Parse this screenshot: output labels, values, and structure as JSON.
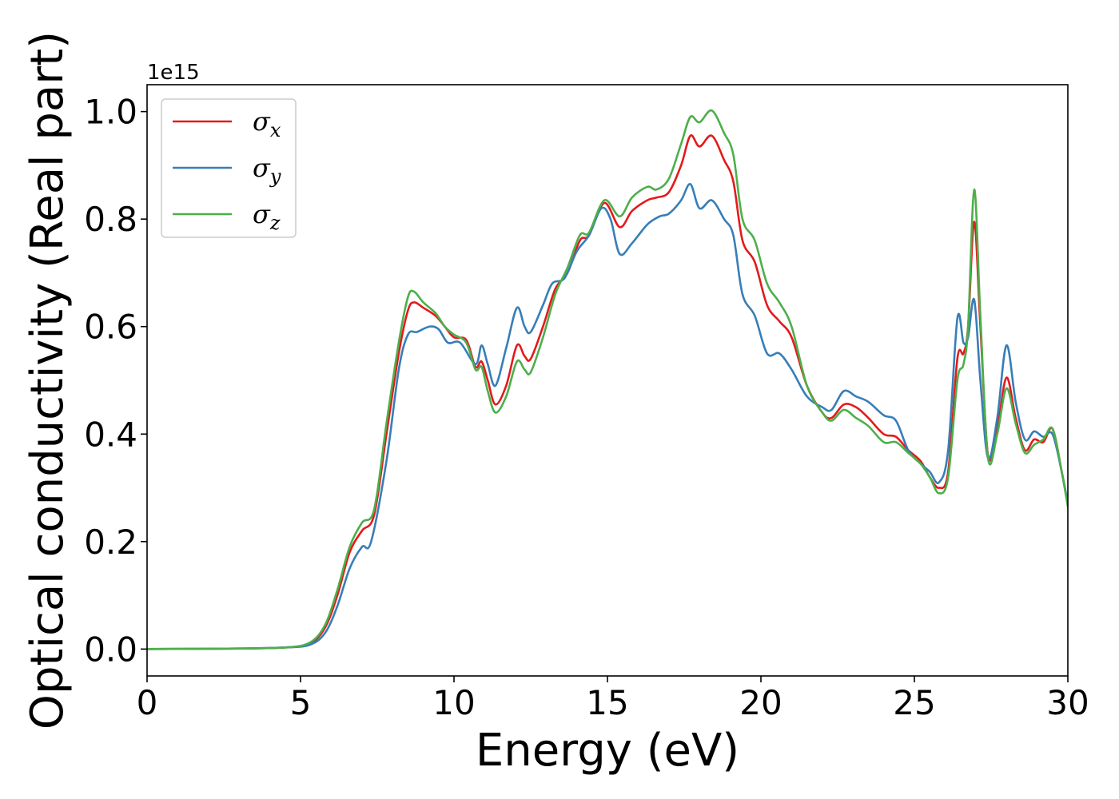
{
  "chart_data": {
    "type": "line",
    "xlabel": "Energy (eV)",
    "ylabel": "Optical conductivity (Real part)",
    "y_offset_text": "1e15",
    "xlim": [
      0,
      30
    ],
    "ylim": [
      -0.05,
      1.05
    ],
    "xticks": [
      0,
      5,
      10,
      15,
      20,
      25,
      30
    ],
    "yticks": [
      0.0,
      0.2,
      0.4,
      0.6,
      0.8,
      1.0
    ],
    "xtick_labels": [
      "0",
      "5",
      "10",
      "15",
      "20",
      "25",
      "30"
    ],
    "ytick_labels": [
      "0.0",
      "0.2",
      "0.4",
      "0.6",
      "0.8",
      "1.0"
    ],
    "legend_position": "top-left",
    "grid": false,
    "series": [
      {
        "name": "σx",
        "name_base": "σ",
        "name_sub": "x",
        "color": "#e41a1c",
        "points": [
          [
            0,
            0
          ],
          [
            3,
            0.001
          ],
          [
            4.5,
            0.003
          ],
          [
            5.3,
            0.01
          ],
          [
            5.8,
            0.04
          ],
          [
            6.2,
            0.1
          ],
          [
            6.6,
            0.18
          ],
          [
            7.0,
            0.22
          ],
          [
            7.4,
            0.25
          ],
          [
            7.8,
            0.4
          ],
          [
            8.2,
            0.55
          ],
          [
            8.5,
            0.63
          ],
          [
            8.7,
            0.645
          ],
          [
            9.0,
            0.635
          ],
          [
            9.4,
            0.62
          ],
          [
            9.7,
            0.6
          ],
          [
            10.0,
            0.58
          ],
          [
            10.4,
            0.575
          ],
          [
            10.7,
            0.525
          ],
          [
            10.9,
            0.535
          ],
          [
            11.1,
            0.5
          ],
          [
            11.35,
            0.455
          ],
          [
            11.7,
            0.49
          ],
          [
            12.05,
            0.565
          ],
          [
            12.3,
            0.545
          ],
          [
            12.5,
            0.54
          ],
          [
            12.9,
            0.6
          ],
          [
            13.3,
            0.67
          ],
          [
            13.7,
            0.7
          ],
          [
            14.1,
            0.76
          ],
          [
            14.4,
            0.77
          ],
          [
            14.9,
            0.83
          ],
          [
            15.4,
            0.785
          ],
          [
            15.8,
            0.815
          ],
          [
            16.3,
            0.835
          ],
          [
            16.6,
            0.84
          ],
          [
            17.0,
            0.85
          ],
          [
            17.4,
            0.9
          ],
          [
            17.7,
            0.955
          ],
          [
            18.0,
            0.935
          ],
          [
            18.4,
            0.955
          ],
          [
            18.8,
            0.91
          ],
          [
            19.1,
            0.87
          ],
          [
            19.4,
            0.76
          ],
          [
            19.8,
            0.72
          ],
          [
            20.2,
            0.64
          ],
          [
            20.6,
            0.61
          ],
          [
            21.0,
            0.58
          ],
          [
            21.5,
            0.49
          ],
          [
            22.0,
            0.44
          ],
          [
            22.3,
            0.43
          ],
          [
            22.7,
            0.455
          ],
          [
            23.1,
            0.45
          ],
          [
            23.5,
            0.43
          ],
          [
            24.0,
            0.4
          ],
          [
            24.4,
            0.395
          ],
          [
            24.8,
            0.37
          ],
          [
            25.2,
            0.35
          ],
          [
            25.5,
            0.32
          ],
          [
            25.8,
            0.3
          ],
          [
            26.1,
            0.33
          ],
          [
            26.4,
            0.54
          ],
          [
            26.6,
            0.55
          ],
          [
            26.75,
            0.6
          ],
          [
            26.95,
            0.795
          ],
          [
            27.15,
            0.6
          ],
          [
            27.4,
            0.36
          ],
          [
            27.7,
            0.41
          ],
          [
            28.0,
            0.505
          ],
          [
            28.3,
            0.43
          ],
          [
            28.6,
            0.37
          ],
          [
            28.9,
            0.39
          ],
          [
            29.2,
            0.385
          ],
          [
            29.5,
            0.41
          ],
          [
            29.8,
            0.33
          ],
          [
            30,
            0.27
          ]
        ]
      },
      {
        "name": "σy",
        "name_base": "σ",
        "name_sub": "y",
        "color": "#377eb8",
        "points": [
          [
            0,
            0
          ],
          [
            3,
            0.001
          ],
          [
            4.5,
            0.003
          ],
          [
            5.3,
            0.008
          ],
          [
            5.8,
            0.03
          ],
          [
            6.2,
            0.08
          ],
          [
            6.6,
            0.15
          ],
          [
            7.0,
            0.19
          ],
          [
            7.3,
            0.2
          ],
          [
            7.8,
            0.35
          ],
          [
            8.2,
            0.52
          ],
          [
            8.5,
            0.585
          ],
          [
            8.8,
            0.59
          ],
          [
            9.2,
            0.6
          ],
          [
            9.5,
            0.595
          ],
          [
            9.8,
            0.57
          ],
          [
            10.2,
            0.57
          ],
          [
            10.7,
            0.53
          ],
          [
            10.9,
            0.565
          ],
          [
            11.1,
            0.53
          ],
          [
            11.35,
            0.49
          ],
          [
            11.7,
            0.56
          ],
          [
            12.05,
            0.635
          ],
          [
            12.3,
            0.6
          ],
          [
            12.5,
            0.59
          ],
          [
            12.9,
            0.64
          ],
          [
            13.2,
            0.68
          ],
          [
            13.6,
            0.69
          ],
          [
            14.0,
            0.74
          ],
          [
            14.4,
            0.77
          ],
          [
            14.8,
            0.82
          ],
          [
            15.1,
            0.8
          ],
          [
            15.4,
            0.735
          ],
          [
            15.8,
            0.755
          ],
          [
            16.3,
            0.79
          ],
          [
            16.7,
            0.805
          ],
          [
            17.0,
            0.81
          ],
          [
            17.4,
            0.835
          ],
          [
            17.7,
            0.865
          ],
          [
            18.0,
            0.82
          ],
          [
            18.4,
            0.835
          ],
          [
            18.8,
            0.8
          ],
          [
            19.1,
            0.77
          ],
          [
            19.4,
            0.66
          ],
          [
            19.8,
            0.62
          ],
          [
            20.2,
            0.55
          ],
          [
            20.6,
            0.55
          ],
          [
            21.0,
            0.52
          ],
          [
            21.5,
            0.47
          ],
          [
            22.0,
            0.45
          ],
          [
            22.3,
            0.445
          ],
          [
            22.7,
            0.48
          ],
          [
            23.1,
            0.47
          ],
          [
            23.5,
            0.46
          ],
          [
            24.0,
            0.435
          ],
          [
            24.4,
            0.425
          ],
          [
            24.8,
            0.37
          ],
          [
            25.2,
            0.345
          ],
          [
            25.5,
            0.33
          ],
          [
            25.8,
            0.31
          ],
          [
            26.1,
            0.37
          ],
          [
            26.4,
            0.615
          ],
          [
            26.6,
            0.57
          ],
          [
            26.75,
            0.58
          ],
          [
            26.95,
            0.65
          ],
          [
            27.15,
            0.5
          ],
          [
            27.4,
            0.355
          ],
          [
            27.7,
            0.43
          ],
          [
            28.0,
            0.565
          ],
          [
            28.3,
            0.46
          ],
          [
            28.6,
            0.39
          ],
          [
            28.9,
            0.405
          ],
          [
            29.2,
            0.395
          ],
          [
            29.5,
            0.4
          ],
          [
            29.8,
            0.33
          ],
          [
            30,
            0.27
          ]
        ]
      },
      {
        "name": "σz",
        "name_base": "σ",
        "name_sub": "z",
        "color": "#4daf4a",
        "points": [
          [
            0,
            0
          ],
          [
            3,
            0.001
          ],
          [
            4.5,
            0.003
          ],
          [
            5.3,
            0.012
          ],
          [
            5.8,
            0.045
          ],
          [
            6.2,
            0.11
          ],
          [
            6.6,
            0.19
          ],
          [
            7.0,
            0.235
          ],
          [
            7.4,
            0.26
          ],
          [
            7.8,
            0.42
          ],
          [
            8.2,
            0.57
          ],
          [
            8.5,
            0.655
          ],
          [
            8.7,
            0.665
          ],
          [
            9.0,
            0.645
          ],
          [
            9.4,
            0.625
          ],
          [
            9.7,
            0.6
          ],
          [
            10.0,
            0.585
          ],
          [
            10.4,
            0.57
          ],
          [
            10.7,
            0.52
          ],
          [
            10.9,
            0.525
          ],
          [
            11.1,
            0.48
          ],
          [
            11.35,
            0.44
          ],
          [
            11.7,
            0.47
          ],
          [
            12.05,
            0.535
          ],
          [
            12.3,
            0.52
          ],
          [
            12.5,
            0.515
          ],
          [
            12.9,
            0.58
          ],
          [
            13.3,
            0.66
          ],
          [
            13.7,
            0.71
          ],
          [
            14.1,
            0.77
          ],
          [
            14.4,
            0.775
          ],
          [
            14.9,
            0.835
          ],
          [
            15.4,
            0.805
          ],
          [
            15.8,
            0.84
          ],
          [
            16.3,
            0.86
          ],
          [
            16.6,
            0.855
          ],
          [
            17.0,
            0.875
          ],
          [
            17.4,
            0.94
          ],
          [
            17.7,
            0.99
          ],
          [
            18.0,
            0.98
          ],
          [
            18.4,
            1.002
          ],
          [
            18.8,
            0.96
          ],
          [
            19.1,
            0.92
          ],
          [
            19.4,
            0.8
          ],
          [
            19.8,
            0.76
          ],
          [
            20.2,
            0.68
          ],
          [
            20.6,
            0.645
          ],
          [
            21.0,
            0.6
          ],
          [
            21.5,
            0.49
          ],
          [
            22.0,
            0.44
          ],
          [
            22.3,
            0.425
          ],
          [
            22.7,
            0.445
          ],
          [
            23.1,
            0.43
          ],
          [
            23.5,
            0.415
          ],
          [
            24.0,
            0.385
          ],
          [
            24.4,
            0.385
          ],
          [
            24.8,
            0.365
          ],
          [
            25.2,
            0.345
          ],
          [
            25.5,
            0.32
          ],
          [
            25.8,
            0.29
          ],
          [
            26.1,
            0.32
          ],
          [
            26.4,
            0.5
          ],
          [
            26.6,
            0.53
          ],
          [
            26.75,
            0.6
          ],
          [
            26.95,
            0.855
          ],
          [
            27.15,
            0.62
          ],
          [
            27.4,
            0.355
          ],
          [
            27.7,
            0.4
          ],
          [
            28.0,
            0.485
          ],
          [
            28.3,
            0.42
          ],
          [
            28.6,
            0.365
          ],
          [
            28.9,
            0.38
          ],
          [
            29.2,
            0.39
          ],
          [
            29.5,
            0.41
          ],
          [
            29.8,
            0.33
          ],
          [
            30,
            0.265
          ]
        ]
      }
    ]
  }
}
